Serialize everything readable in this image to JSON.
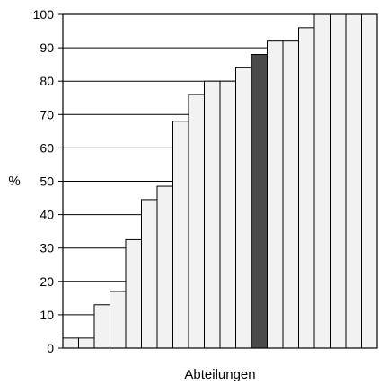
{
  "chart_data": {
    "type": "bar",
    "title": "",
    "xlabel": "Abteilungen",
    "ylabel": "%",
    "ylim": [
      0,
      100
    ],
    "yticks": [
      0,
      10,
      20,
      30,
      40,
      50,
      60,
      70,
      80,
      90,
      100
    ],
    "grid": "horizontal",
    "legend": "none",
    "values": [
      3,
      3,
      13,
      17,
      32.5,
      44.5,
      48.5,
      68,
      76,
      80,
      80,
      84,
      88,
      92,
      92,
      96,
      100,
      100,
      100,
      100
    ],
    "highlight_index": 12,
    "colors": {
      "bar_fill": "#f2f2f2",
      "highlight_fill": "#4a4a4a",
      "stroke": "#000000"
    }
  }
}
